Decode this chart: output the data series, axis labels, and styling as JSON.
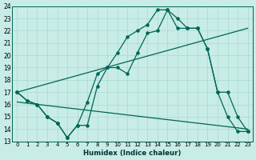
{
  "xlabel": "Humidex (Indice chaleur)",
  "background_color": "#c8ece6",
  "line_color": "#006655",
  "xlim": [
    -0.5,
    23.5
  ],
  "ylim": [
    13,
    24
  ],
  "yticks": [
    13,
    14,
    15,
    16,
    17,
    18,
    19,
    20,
    21,
    22,
    23,
    24
  ],
  "xticks": [
    0,
    1,
    2,
    3,
    4,
    5,
    6,
    7,
    8,
    9,
    10,
    11,
    12,
    13,
    14,
    15,
    16,
    17,
    18,
    19,
    20,
    21,
    22,
    23
  ],
  "curve1_x": [
    0,
    1,
    2,
    3,
    4,
    5,
    6,
    7,
    8,
    9,
    10,
    11,
    12,
    13,
    14,
    15,
    16,
    17,
    18,
    19,
    20,
    21,
    22,
    23
  ],
  "curve1_y": [
    17,
    16.3,
    16.0,
    15.0,
    14.5,
    13.3,
    14.3,
    16.2,
    18.5,
    19.0,
    20.2,
    21.5,
    22.0,
    22.5,
    23.7,
    23.7,
    23.0,
    22.2,
    22.2,
    20.5,
    17.0,
    15.0,
    13.8,
    13.8
  ],
  "curve2_x": [
    0,
    1,
    2,
    3,
    4,
    5,
    6,
    7,
    8,
    9,
    10,
    11,
    12,
    13,
    14,
    15,
    16,
    17,
    18,
    19,
    20,
    21,
    22,
    23
  ],
  "curve2_y": [
    17,
    16.3,
    16.0,
    15.0,
    14.5,
    13.3,
    14.3,
    14.3,
    17.5,
    19.0,
    19.0,
    18.5,
    20.2,
    21.8,
    22.0,
    23.7,
    22.2,
    22.2,
    22.2,
    20.5,
    17.0,
    17.0,
    15.0,
    13.8
  ],
  "trend1_x": [
    0,
    23
  ],
  "trend1_y": [
    17.0,
    22.2
  ],
  "trend2_x": [
    0,
    23
  ],
  "trend2_y": [
    16.2,
    14.0
  ],
  "gridcolor": "#a8d8d0"
}
